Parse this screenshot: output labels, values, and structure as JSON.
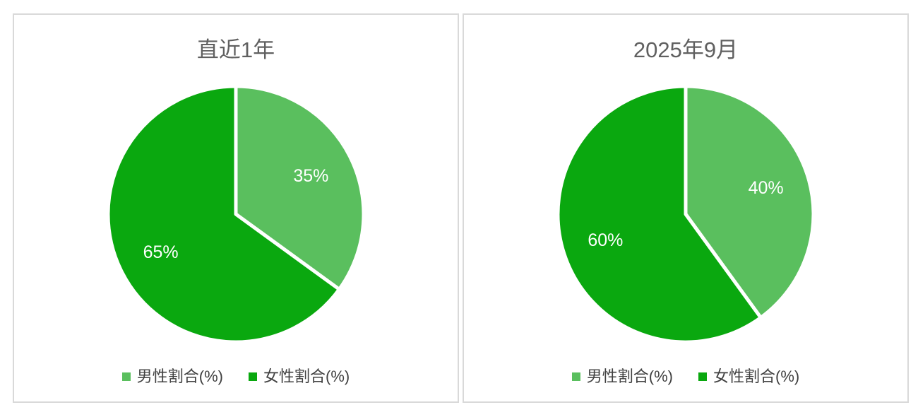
{
  "window": {
    "background": "#ffffff"
  },
  "styles": {
    "panel_border_color": "#d9d9d9",
    "title_color": "#606060",
    "legend_text_color": "#404040",
    "data_label_color": "#ffffff",
    "slice_separator_color": "#ffffff"
  },
  "chart_data": [
    {
      "type": "pie",
      "title": "直近1年",
      "categories": [
        "男性割合(%)",
        "女性割合(%)"
      ],
      "values": [
        35,
        65
      ],
      "data_labels": [
        "35%",
        "65%"
      ],
      "colors": [
        "#5ABF5E",
        "#0AA80F"
      ],
      "start_angle_deg": 0,
      "direction": "clockwise",
      "legend_position": "bottom",
      "data_label_position": "inside"
    },
    {
      "type": "pie",
      "title": "2025年9月",
      "categories": [
        "男性割合(%)",
        "女性割合(%)"
      ],
      "values": [
        40,
        60
      ],
      "data_labels": [
        "40%",
        "60%"
      ],
      "colors": [
        "#5ABF5E",
        "#0AA80F"
      ],
      "start_angle_deg": 0,
      "direction": "clockwise",
      "legend_position": "bottom",
      "data_label_position": "inside"
    }
  ]
}
